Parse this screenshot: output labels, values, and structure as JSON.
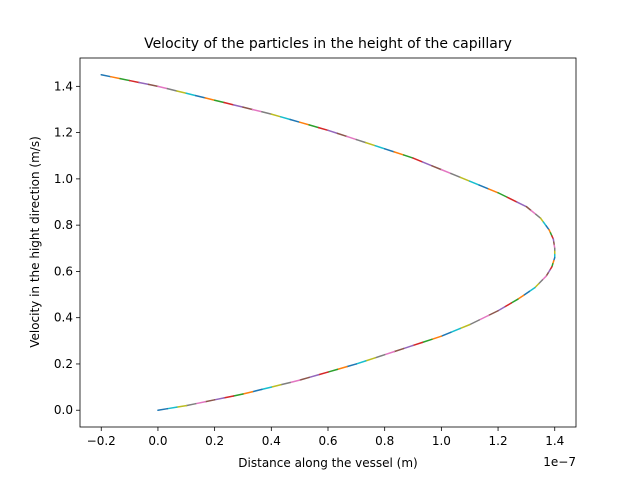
{
  "chart_data": {
    "type": "line",
    "title": "Velocity of the particles in the height of the capillary",
    "xlabel": "Distance along the vessel (m)",
    "ylabel": "Velocity in the hight direction (m/s)",
    "x_offset_label": "1e−7",
    "xlim": [
      -0.275,
      1.475
    ],
    "ylim": [
      -0.0725,
      1.5225
    ],
    "x_ticks": [
      -0.2,
      0.0,
      0.2,
      0.4,
      0.6,
      0.8,
      1.0,
      1.2,
      1.4
    ],
    "x_tick_labels": [
      "−0.2",
      "0.0",
      "0.2",
      "0.4",
      "0.6",
      "0.8",
      "1.0",
      "1.2",
      "1.4"
    ],
    "y_ticks": [
      0.0,
      0.2,
      0.4,
      0.6,
      0.8,
      1.0,
      1.2,
      1.4
    ],
    "y_tick_labels": [
      "0.0",
      "0.2",
      "0.4",
      "0.6",
      "0.8",
      "1.0",
      "1.2",
      "1.4"
    ],
    "grid": false,
    "legend": "none",
    "series_colors": [
      "#1f77b4",
      "#ff7f0e",
      "#2ca02c",
      "#d62728",
      "#9467bd",
      "#8c564b",
      "#e377c2",
      "#7f7f7f",
      "#bcbd22",
      "#17becf"
    ],
    "curve": {
      "x": [
        -0.2,
        -0.1,
        0.0,
        0.1,
        0.2,
        0.3,
        0.4,
        0.5,
        0.6,
        0.7,
        0.8,
        0.9,
        1.0,
        1.1,
        1.2,
        1.3,
        1.35,
        1.38,
        1.395,
        1.4,
        1.4,
        1.39,
        1.37,
        1.33,
        1.27,
        1.2,
        1.1,
        1.0,
        0.9,
        0.8,
        0.7,
        0.6,
        0.5,
        0.4,
        0.3,
        0.2,
        0.1,
        0.0
      ],
      "y": [
        1.45,
        1.425,
        1.4,
        1.37,
        1.34,
        1.31,
        1.28,
        1.245,
        1.21,
        1.17,
        1.13,
        1.09,
        1.04,
        0.99,
        0.94,
        0.88,
        0.83,
        0.78,
        0.74,
        0.7,
        0.66,
        0.62,
        0.58,
        0.53,
        0.48,
        0.43,
        0.37,
        0.32,
        0.28,
        0.24,
        0.2,
        0.165,
        0.13,
        0.1,
        0.07,
        0.045,
        0.02,
        0.0
      ]
    }
  }
}
